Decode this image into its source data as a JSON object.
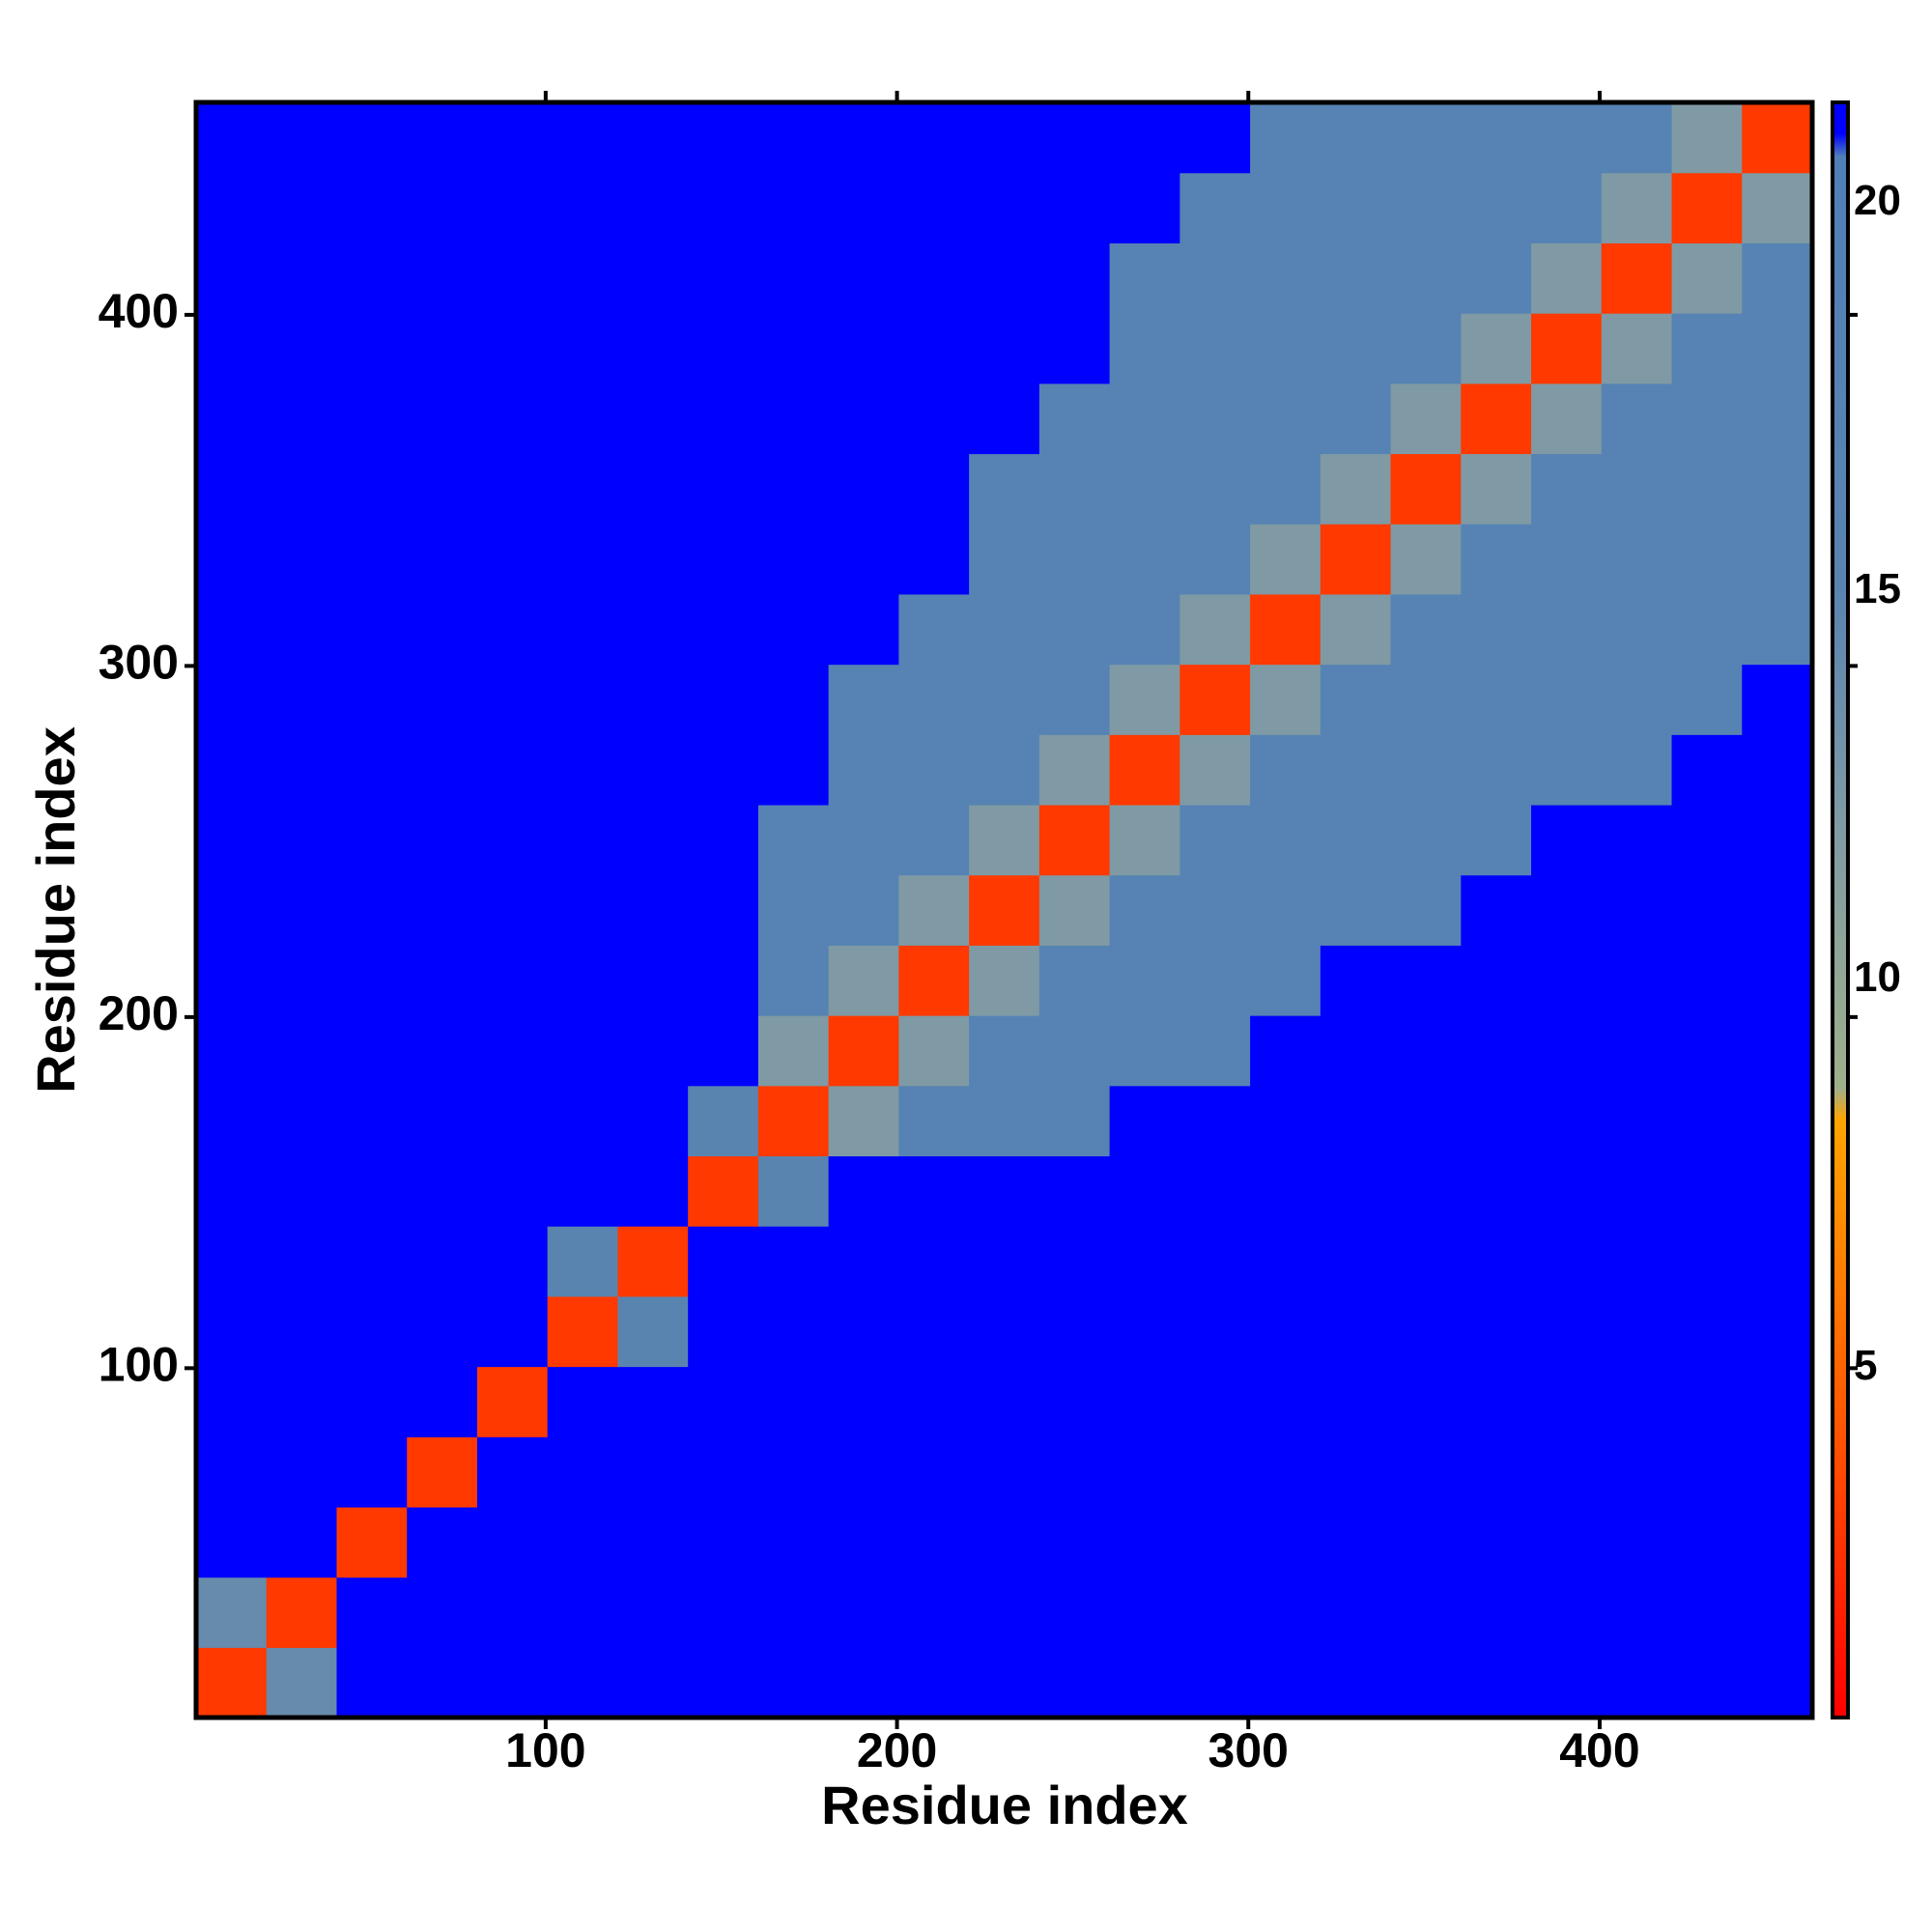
{
  "chart_data": {
    "type": "heatmap",
    "xlabel": "Residue index",
    "ylabel": "Residue index",
    "x": [
      10.5,
      30.5,
      50.5,
      70.5,
      90.5,
      110.5,
      130.5,
      150.5,
      170.5,
      190.5,
      210.5,
      230.5,
      250.5,
      270.5,
      290.5,
      310.5,
      330.5,
      350.5,
      370.5,
      390.5,
      410.5,
      430.5,
      450.5
    ],
    "y": [
      10.5,
      30.5,
      50.5,
      70.5,
      90.5,
      110.5,
      130.5,
      150.5,
      170.5,
      190.5,
      210.5,
      230.5,
      250.5,
      270.5,
      290.5,
      310.5,
      330.5,
      350.5,
      370.5,
      390.5,
      410.5,
      430.5,
      450.5
    ],
    "z": [
      [
        3,
        14,
        21,
        21,
        21,
        21,
        21,
        21,
        21,
        21,
        21,
        21,
        21,
        21,
        21,
        21,
        21,
        21,
        21,
        21,
        21,
        21,
        21
      ],
      [
        14,
        3,
        21,
        21,
        21,
        21,
        21,
        21,
        21,
        21,
        21,
        21,
        21,
        21,
        21,
        21,
        21,
        21,
        21,
        21,
        21,
        21,
        21
      ],
      [
        21,
        21,
        3,
        21,
        21,
        21,
        21,
        21,
        21,
        21,
        21,
        21,
        21,
        21,
        21,
        21,
        21,
        21,
        21,
        21,
        21,
        21,
        21
      ],
      [
        21,
        21,
        21,
        3,
        21,
        21,
        21,
        21,
        21,
        21,
        21,
        21,
        21,
        21,
        21,
        21,
        21,
        21,
        21,
        21,
        21,
        21,
        21
      ],
      [
        21,
        21,
        21,
        21,
        3,
        21,
        21,
        21,
        21,
        21,
        21,
        21,
        21,
        21,
        21,
        21,
        21,
        21,
        21,
        21,
        21,
        21,
        21
      ],
      [
        21,
        21,
        21,
        21,
        21,
        3,
        15,
        21,
        21,
        21,
        21,
        21,
        21,
        21,
        21,
        21,
        21,
        21,
        21,
        21,
        21,
        21,
        21
      ],
      [
        21,
        21,
        21,
        21,
        21,
        15,
        3,
        21,
        21,
        21,
        21,
        21,
        21,
        21,
        21,
        21,
        21,
        21,
        21,
        21,
        21,
        21,
        21
      ],
      [
        21,
        21,
        21,
        21,
        21,
        21,
        21,
        3,
        15,
        21,
        21,
        21,
        21,
        21,
        21,
        21,
        21,
        21,
        21,
        21,
        21,
        21,
        21
      ],
      [
        21,
        21,
        21,
        21,
        21,
        21,
        21,
        15,
        3,
        12,
        17,
        17,
        17,
        21,
        21,
        21,
        21,
        21,
        21,
        21,
        21,
        21,
        21
      ],
      [
        21,
        21,
        21,
        21,
        21,
        21,
        21,
        21,
        12,
        3,
        12,
        17,
        17,
        17,
        17,
        21,
        21,
        21,
        21,
        21,
        21,
        21,
        21
      ],
      [
        21,
        21,
        21,
        21,
        21,
        21,
        21,
        21,
        17,
        12,
        3,
        12,
        17,
        17,
        17,
        17,
        21,
        21,
        21,
        21,
        21,
        21,
        21
      ],
      [
        21,
        21,
        21,
        21,
        21,
        21,
        21,
        21,
        17,
        17,
        12,
        3,
        12,
        17,
        17,
        17,
        17,
        17,
        21,
        21,
        21,
        21,
        21
      ],
      [
        21,
        21,
        21,
        21,
        21,
        21,
        21,
        21,
        17,
        17,
        17,
        12,
        3,
        12,
        17,
        17,
        17,
        17,
        17,
        21,
        21,
        21,
        21
      ],
      [
        21,
        21,
        21,
        21,
        21,
        21,
        21,
        21,
        21,
        17,
        17,
        17,
        12,
        3,
        12,
        17,
        17,
        17,
        17,
        17,
        17,
        21,
        21
      ],
      [
        21,
        21,
        21,
        21,
        21,
        21,
        21,
        21,
        21,
        17,
        17,
        17,
        17,
        12,
        3,
        12,
        17,
        17,
        17,
        17,
        17,
        17,
        21
      ],
      [
        21,
        21,
        21,
        21,
        21,
        21,
        21,
        21,
        21,
        21,
        17,
        17,
        17,
        17,
        12,
        3,
        12,
        17,
        17,
        17,
        17,
        17,
        17
      ],
      [
        21,
        21,
        21,
        21,
        21,
        21,
        21,
        21,
        21,
        21,
        21,
        17,
        17,
        17,
        17,
        12,
        3,
        12,
        17,
        17,
        17,
        17,
        17
      ],
      [
        21,
        21,
        21,
        21,
        21,
        21,
        21,
        21,
        21,
        21,
        21,
        17,
        17,
        17,
        17,
        17,
        12,
        3,
        12,
        17,
        17,
        17,
        17
      ],
      [
        21,
        21,
        21,
        21,
        21,
        21,
        21,
        21,
        21,
        21,
        21,
        21,
        17,
        17,
        17,
        17,
        17,
        12,
        3,
        12,
        17,
        17,
        17
      ],
      [
        21,
        21,
        21,
        21,
        21,
        21,
        21,
        21,
        21,
        21,
        21,
        21,
        21,
        17,
        17,
        17,
        17,
        17,
        12,
        3,
        12,
        17,
        17
      ],
      [
        21,
        21,
        21,
        21,
        21,
        21,
        21,
        21,
        21,
        21,
        21,
        21,
        21,
        17,
        17,
        17,
        17,
        17,
        17,
        12,
        3,
        12,
        17
      ],
      [
        21,
        21,
        21,
        21,
        21,
        21,
        21,
        21,
        21,
        21,
        21,
        21,
        21,
        21,
        17,
        17,
        17,
        17,
        17,
        17,
        12,
        3,
        12
      ],
      [
        21,
        21,
        21,
        21,
        21,
        21,
        21,
        21,
        21,
        21,
        21,
        21,
        21,
        21,
        21,
        17,
        17,
        17,
        17,
        17,
        17,
        12,
        3
      ]
    ],
    "xlim": [
      0.5,
      460.5
    ],
    "ylim": [
      0.5,
      460.5
    ],
    "xticks": [
      100,
      200,
      300,
      400
    ],
    "yticks": [
      100,
      200,
      300,
      400
    ],
    "clim": [
      0.5,
      21.3
    ],
    "cticks": [
      5,
      10,
      15,
      20
    ],
    "colorscale": [
      [
        0.5,
        "#ff0000"
      ],
      [
        4,
        "#ff5000"
      ],
      [
        8.2,
        "#ffa500"
      ],
      [
        8.6,
        "#9fb08a"
      ],
      [
        12,
        "#7f9aa4"
      ],
      [
        15,
        "#5a84b0"
      ],
      [
        20.6,
        "#5080b8"
      ],
      [
        20.9,
        "#0000ff"
      ],
      [
        21.3,
        "#0000ff"
      ]
    ]
  }
}
